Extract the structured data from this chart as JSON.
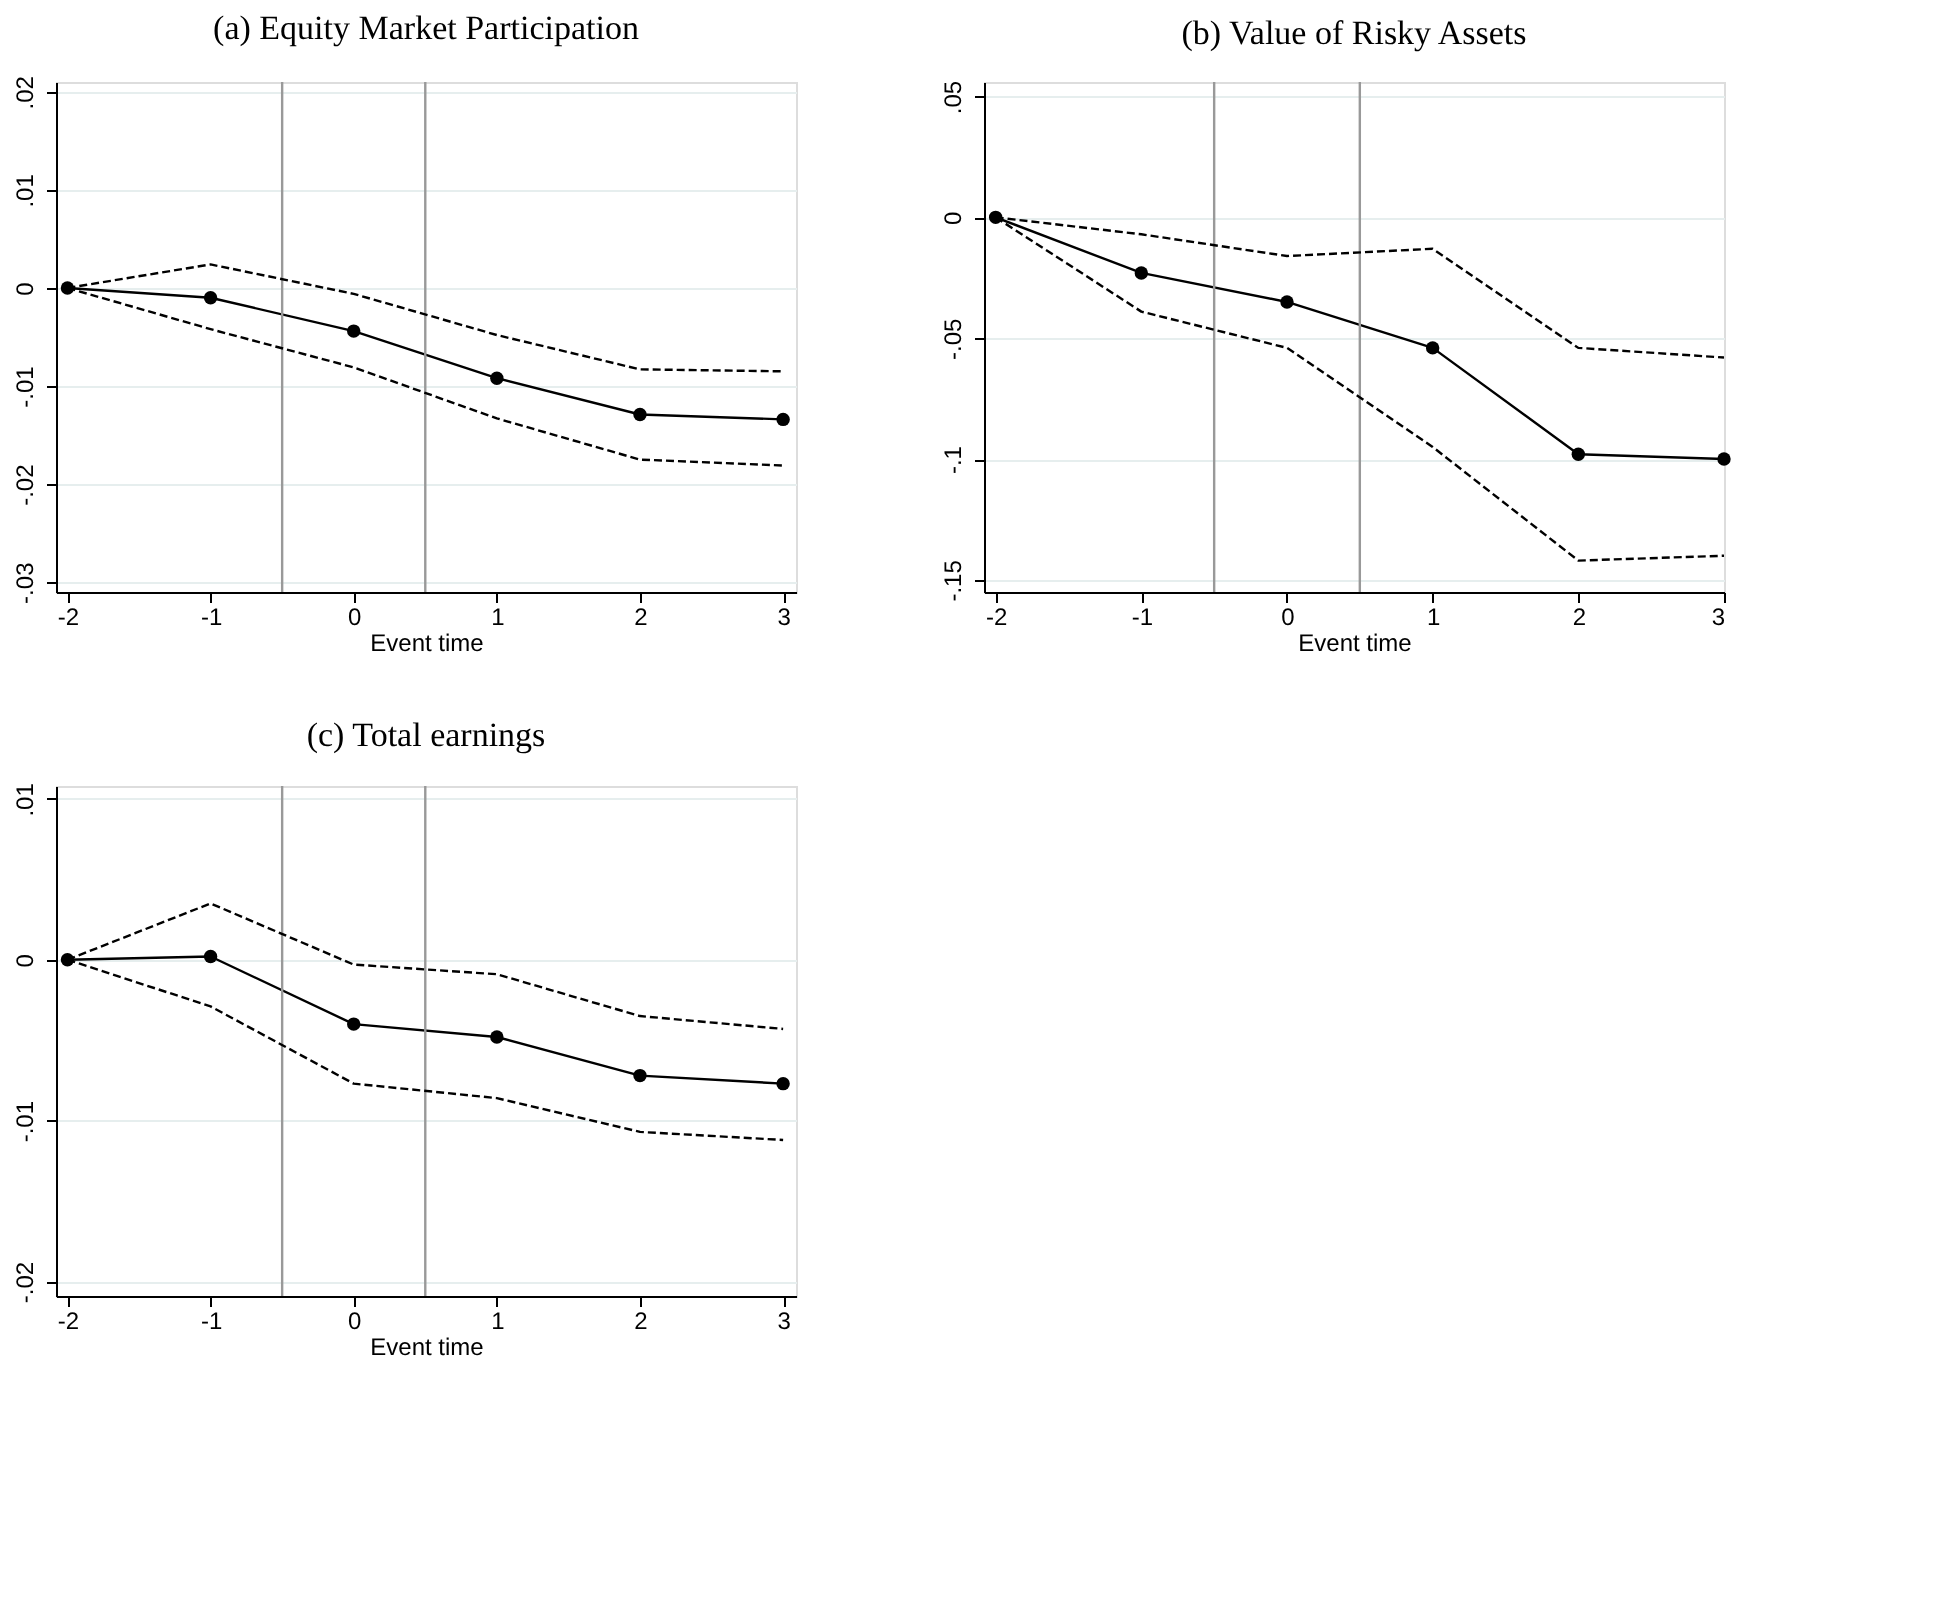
{
  "chart_data": [
    {
      "type": "line",
      "title": "(a) Equity Market Participation",
      "xlabel": "Event time",
      "x": [
        -2,
        -1,
        0,
        1,
        2,
        3
      ],
      "xlim": [
        -2.08,
        3.09
      ],
      "xticks": [
        -2,
        -1,
        0,
        1,
        2,
        3
      ],
      "ylim": [
        -0.031,
        0.021
      ],
      "yticks": [
        {
          "value": -0.03,
          "label": "-.03"
        },
        {
          "value": -0.02,
          "label": "-.02"
        },
        {
          "value": -0.01,
          "label": "-.01"
        },
        {
          "value": 0,
          "label": "0"
        },
        {
          "value": 0.01,
          "label": ".01"
        },
        {
          "value": 0.02,
          "label": ".02"
        }
      ],
      "grid": "y",
      "series": [
        {
          "color": "#000000",
          "marker": "circle",
          "line_style": "solid",
          "values": [
            0,
            -0.001,
            -0.0044,
            -0.0092,
            -0.0129,
            -0.0134
          ]
        },
        {
          "color": "#000000",
          "marker": "none",
          "line_style": "dashed",
          "values": [
            0,
            0.0024,
            -0.0006,
            -0.0048,
            -0.0083,
            -0.0085
          ]
        },
        {
          "color": "#000000",
          "marker": "none",
          "line_style": "dashed",
          "values": [
            0,
            -0.0042,
            -0.0081,
            -0.0133,
            -0.0175,
            -0.0181
          ]
        }
      ],
      "ref_lines": [
        {
          "axis": "x",
          "value": -0.5,
          "color": "#999999"
        },
        {
          "axis": "x",
          "value": 0.5,
          "color": "#999999"
        }
      ]
    },
    {
      "type": "line",
      "title": "(b) Value of Risky Assets",
      "xlabel": "Event time",
      "x": [
        -2,
        -1,
        0,
        1,
        2,
        3
      ],
      "xlim": [
        -2.08,
        3.0
      ],
      "xticks": [
        -2,
        -1,
        0,
        1,
        2,
        3
      ],
      "ylim": [
        -0.155,
        0.056
      ],
      "yticks": [
        {
          "value": -0.15,
          "label": "-.15"
        },
        {
          "value": -0.1,
          "label": "-.1"
        },
        {
          "value": -0.05,
          "label": "-.05"
        },
        {
          "value": 0,
          "label": "0"
        },
        {
          "value": 0.05,
          "label": ".05"
        }
      ],
      "grid": "y",
      "series": [
        {
          "color": "#000000",
          "marker": "circle",
          "line_style": "solid",
          "values": [
            0,
            -0.023,
            -0.035,
            -0.054,
            -0.098,
            -0.1
          ]
        },
        {
          "color": "#000000",
          "marker": "none",
          "line_style": "dashed",
          "values": [
            0,
            -0.007,
            -0.016,
            -0.013,
            -0.054,
            -0.058
          ]
        },
        {
          "color": "#000000",
          "marker": "none",
          "line_style": "dashed",
          "values": [
            0,
            -0.039,
            -0.054,
            -0.095,
            -0.142,
            -0.14
          ]
        }
      ],
      "ref_lines": [
        {
          "axis": "x",
          "value": -0.5,
          "color": "#999999"
        },
        {
          "axis": "x",
          "value": 0.5,
          "color": "#999999"
        }
      ]
    },
    {
      "type": "line",
      "title": "(c) Total earnings",
      "xlabel": "Event time",
      "x": [
        -2,
        -1,
        0,
        1,
        2,
        3
      ],
      "xlim": [
        -2.08,
        3.09
      ],
      "xticks": [
        -2,
        -1,
        0,
        1,
        2,
        3
      ],
      "ylim": [
        -0.0209,
        0.0108
      ],
      "yticks": [
        {
          "value": -0.02,
          "label": "-.02"
        },
        {
          "value": -0.01,
          "label": "-.01"
        },
        {
          "value": 0,
          "label": "0"
        },
        {
          "value": 0.01,
          "label": ".01"
        }
      ],
      "grid": "y",
      "series": [
        {
          "color": "#000000",
          "marker": "circle",
          "line_style": "solid",
          "values": [
            0,
            0.0002,
            -0.004,
            -0.0048,
            -0.0072,
            -0.0077
          ]
        },
        {
          "color": "#000000",
          "marker": "none",
          "line_style": "dashed",
          "values": [
            0,
            0.0035,
            -0.0003,
            -0.0009,
            -0.0035,
            -0.0043
          ]
        },
        {
          "color": "#000000",
          "marker": "none",
          "line_style": "dashed",
          "values": [
            0,
            -0.0029,
            -0.0077,
            -0.0086,
            -0.0107,
            -0.0112
          ]
        }
      ],
      "ref_lines": [
        {
          "axis": "x",
          "value": -0.5,
          "color": "#999999"
        },
        {
          "axis": "x",
          "value": 0.5,
          "color": "#999999"
        }
      ]
    }
  ]
}
